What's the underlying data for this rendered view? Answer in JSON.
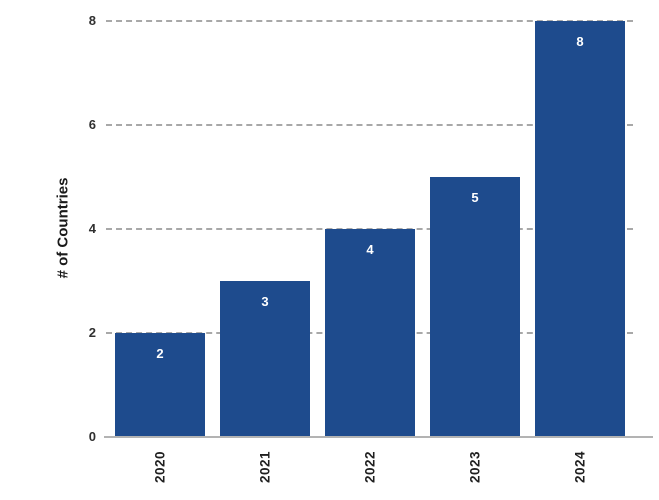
{
  "chart_data": {
    "type": "bar",
    "title": "",
    "xlabel": "",
    "ylabel": "# of Countries",
    "categories": [
      "2020",
      "2021",
      "2022",
      "2023",
      "2024"
    ],
    "values": [
      2,
      3,
      4,
      5,
      8
    ],
    "value_labels": [
      "2",
      "3",
      "4",
      "5",
      "8"
    ],
    "ytick_labels": [
      "0",
      "2",
      "4",
      "6",
      "8"
    ],
    "yticks": [
      0,
      2,
      4,
      6,
      8
    ],
    "ylim": [
      0,
      8
    ],
    "grid": "horizontal dashed gridlines at 2, 4, 6, 8",
    "legend": "none",
    "colors": {
      "bar": "#1e4b8d",
      "value_label": "#ffffff",
      "axis_text": "#303030",
      "gridline": "#a8a8a8",
      "baseline": "#b3b3b3",
      "background": "#ffffff"
    }
  }
}
